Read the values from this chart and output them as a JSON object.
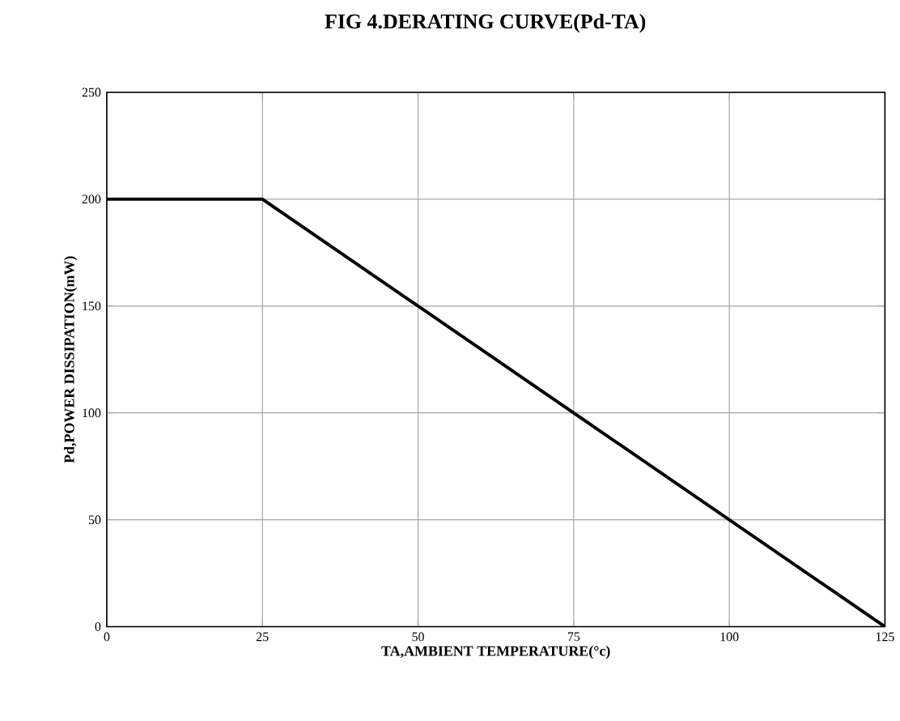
{
  "chart_data": {
    "type": "line",
    "title": "FIG 4.DERATING  CURVE(Pd-TA)",
    "xlabel": "TA,AMBIENT TEMPERATURE(°c)",
    "ylabel": "Pd,POWER DISSIPATION(mW)",
    "x": [
      0,
      25,
      125
    ],
    "series": [
      {
        "color": "#000000",
        "values": [
          200,
          200,
          0
        ]
      }
    ],
    "xlim": [
      0,
      125
    ],
    "xticks": [
      0,
      25,
      50,
      75,
      100,
      125
    ],
    "ylim": [
      0,
      250
    ],
    "yticks": [
      0,
      50,
      100,
      150,
      200,
      250
    ],
    "grid": true,
    "marker": "none",
    "line_style": "solid"
  }
}
